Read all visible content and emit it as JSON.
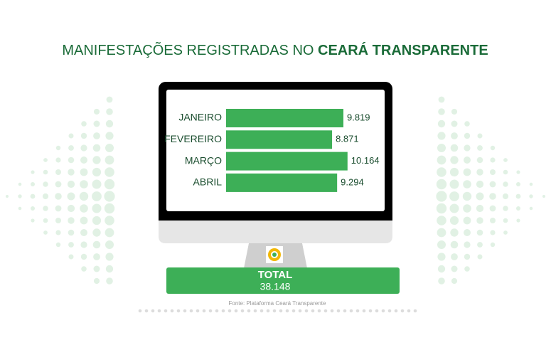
{
  "title": {
    "text": "MANIFESTAÇÕES REGISTRADAS NO",
    "highlight": "CEARÁ TRANSPARENTE"
  },
  "chart_data": {
    "type": "bar",
    "orientation": "horizontal",
    "categories": [
      "JANEIRO",
      "FEVEREIRO",
      "MARÇO",
      "ABRIL"
    ],
    "values": [
      9819,
      8871,
      10164,
      9294
    ],
    "value_labels": [
      "9.819",
      "8.871",
      "10.164",
      "9.294"
    ],
    "color": "#3daf57"
  },
  "total": {
    "label": "TOTAL",
    "value": "38.148"
  },
  "source": "Fonte: Plataforma Ceará Transparente"
}
